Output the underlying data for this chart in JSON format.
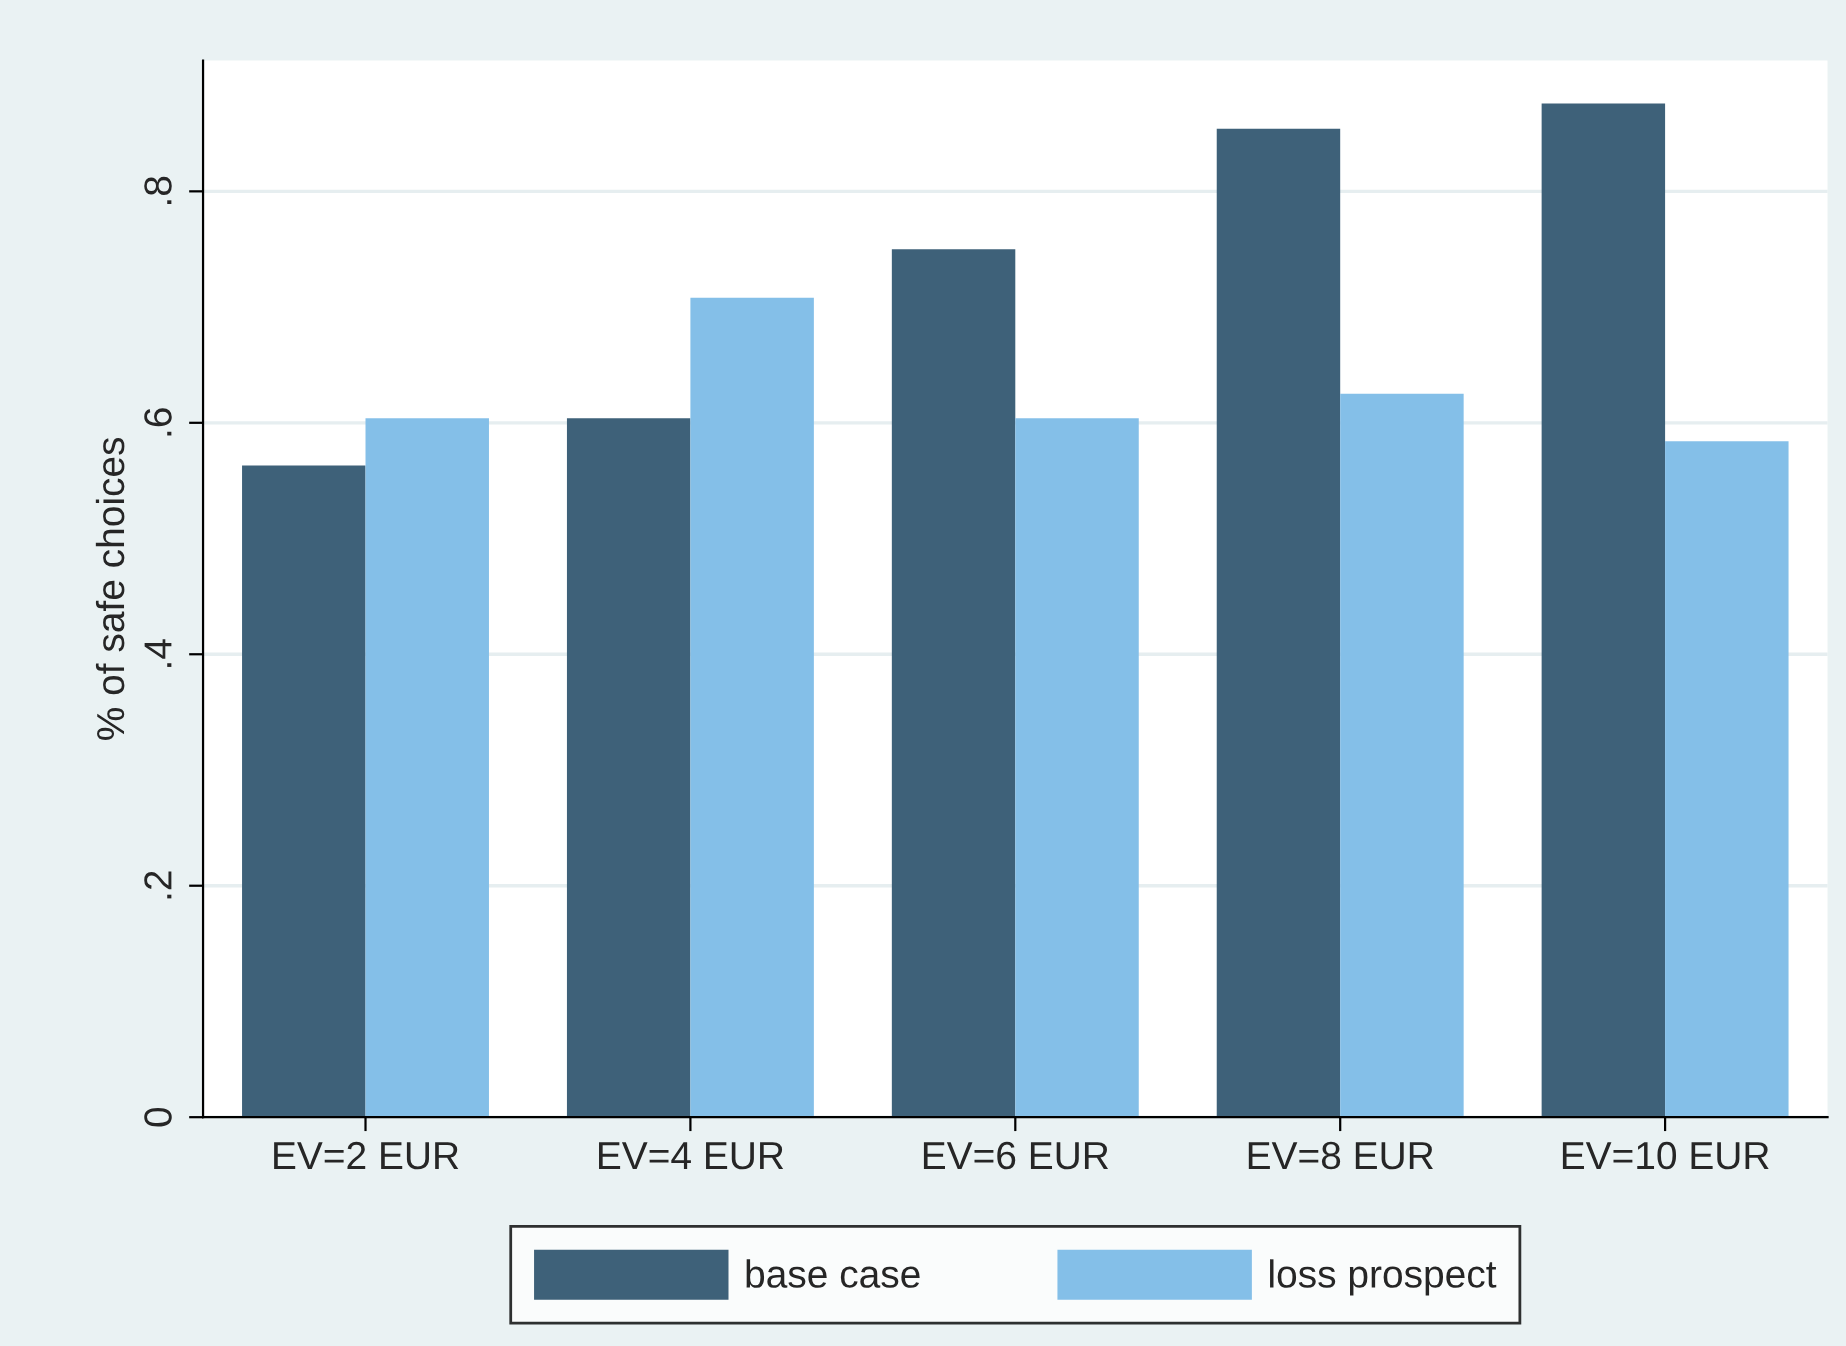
{
  "chart_data": {
    "type": "bar",
    "ylabel": "% of safe choices",
    "categories": [
      "EV=2 EUR",
      "EV=4 EUR",
      "EV=6 EUR",
      "EV=8 EUR",
      "EV=10 EUR"
    ],
    "series": [
      {
        "name": "base case",
        "color": "#3e6179",
        "values": [
          0.563,
          0.604,
          0.75,
          0.854,
          0.876
        ]
      },
      {
        "name": "loss prospect",
        "color": "#84bfe8",
        "values": [
          0.604,
          0.708,
          0.604,
          0.625,
          0.584
        ]
      }
    ],
    "ylim": [
      0,
      0.913
    ],
    "yticks": [
      0,
      {
        "value": 0.2,
        "label": ".2"
      },
      {
        "value": 0.4,
        "label": ".4"
      },
      {
        "value": 0.6,
        "label": ".6"
      },
      {
        "value": 0.8,
        "label": ".8"
      }
    ],
    "grid": "y",
    "legend": "bottom"
  }
}
